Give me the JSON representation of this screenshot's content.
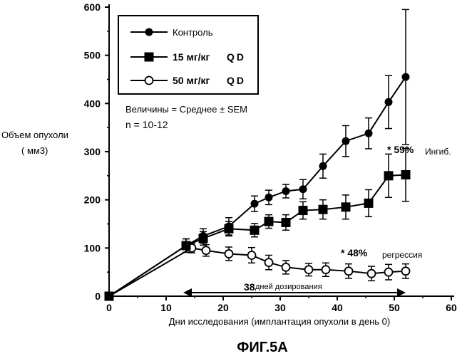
{
  "chart_data": {
    "type": "line",
    "title": "ФИГ.5А",
    "xlabel": "Дни исследования (имплантация опухоли в день 0)",
    "ylabel_line1": "Объем опухоли",
    "ylabel_line2": "( мм3)",
    "xlim": [
      0,
      60
    ],
    "ylim": [
      0,
      600
    ],
    "xticks": [
      0,
      10,
      20,
      30,
      40,
      50,
      60
    ],
    "yticks": [
      0,
      100,
      200,
      300,
      400,
      500,
      600
    ],
    "grid": false,
    "legend_position": "top-left",
    "series": [
      {
        "name": "Контроль",
        "dose": "",
        "marker": "filled-circle",
        "x": [
          0,
          13.5,
          16.5,
          21,
          25.5,
          28,
          31,
          34,
          37.5,
          41.5,
          45.5,
          49,
          52
        ],
        "y": [
          0,
          105,
          125,
          145,
          192,
          205,
          218,
          222,
          270,
          322,
          338,
          403,
          455
        ],
        "err": [
          0,
          14,
          15,
          18,
          16,
          15,
          14,
          20,
          25,
          32,
          32,
          55,
          140
        ]
      },
      {
        "name": "15 мг/кг",
        "dose": "QD",
        "marker": "filled-square",
        "x": [
          0,
          13.5,
          16.5,
          21,
          25.5,
          28,
          31,
          34,
          37.5,
          41.5,
          45.5,
          49,
          52
        ],
        "y": [
          0,
          105,
          120,
          140,
          137,
          155,
          153,
          178,
          180,
          185,
          193,
          250,
          252
        ],
        "err": [
          0,
          14,
          14,
          15,
          14,
          14,
          16,
          18,
          20,
          25,
          28,
          45,
          55
        ]
      },
      {
        "name": "50 мг/кг",
        "dose": "QD",
        "marker": "open-circle",
        "x": [
          0,
          14.5,
          17,
          21,
          25,
          28,
          31,
          35,
          38,
          42,
          46,
          49,
          52
        ],
        "y": [
          0,
          100,
          95,
          88,
          85,
          70,
          60,
          55,
          55,
          52,
          47,
          50,
          52
        ],
        "err": [
          0,
          10,
          12,
          14,
          16,
          15,
          14,
          13,
          14,
          15,
          15,
          16,
          15
        ]
      }
    ],
    "annotations": {
      "stats": "Величины = Среднее ± SEM",
      "n": "n = 10-12",
      "inhib_pct": "* 59%",
      "inhib_word": "Ингиб.",
      "regr_pct": "* 48%",
      "regr_word": "регрессия",
      "dosing_num": "38",
      "dosing_text": "дней дозирования",
      "dosing_range": [
        13,
        52
      ]
    }
  }
}
